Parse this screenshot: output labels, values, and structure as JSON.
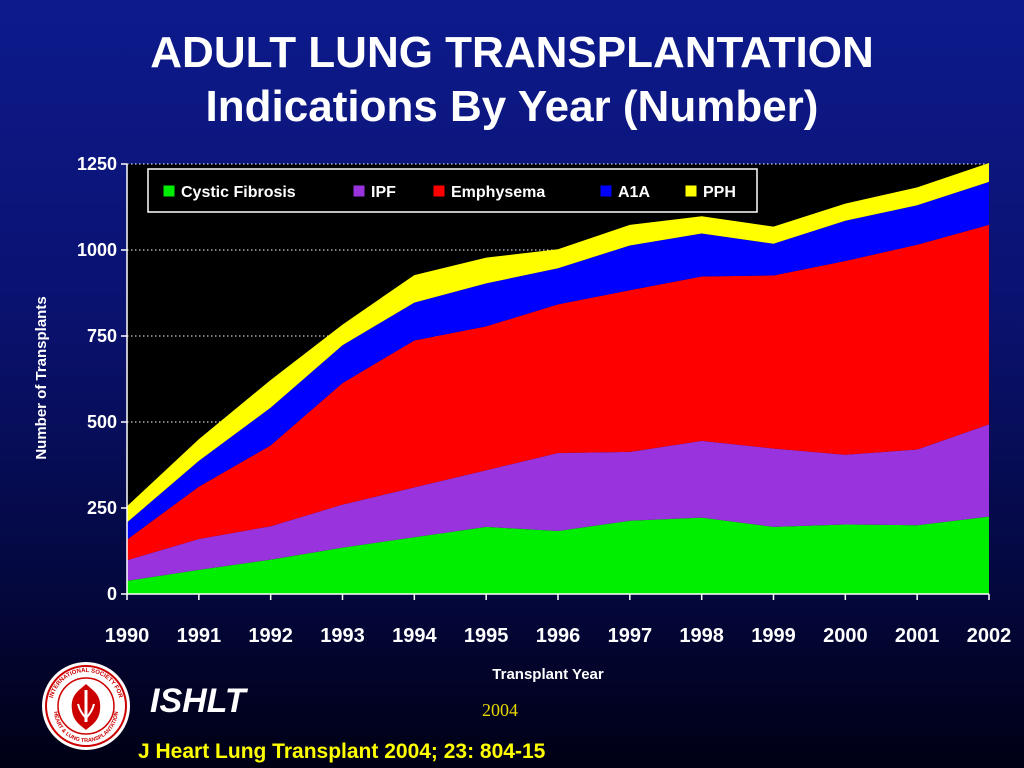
{
  "slide": {
    "title_line1": "ADULT LUNG TRANSPLANTATION",
    "title_line2": "Indications By Year (Number)",
    "brand": "ISHLT",
    "year_note": "2004",
    "citation": "J Heart Lung Transplant 2004; 23: 804-15",
    "logo_text_top": "INTERNATIONAL SOCIETY FOR",
    "logo_text_bottom": "HEART & LUNG TRANSPLANTATION"
  },
  "colors": {
    "plot_background": "#000000",
    "axis_text": "#ffffff",
    "gridline": "#ffffff"
  },
  "chart_data": {
    "type": "area",
    "stacked": true,
    "title": "",
    "xlabel": "Transplant Year",
    "ylabel": "Number of Transplants",
    "x": [
      1990,
      1991,
      1992,
      1993,
      1994,
      1995,
      1996,
      1997,
      1998,
      1999,
      2000,
      2001,
      2002
    ],
    "xtick_labels": [
      "1990",
      "1991",
      "1992",
      "1993",
      "1994",
      "1995",
      "1996",
      "1997",
      "1998",
      "1999",
      "2000",
      "2001",
      "2002"
    ],
    "ylim": [
      0,
      1250
    ],
    "yticks": [
      0,
      250,
      500,
      750,
      1000,
      1250
    ],
    "ytick_labels": [
      "0",
      "250",
      "500",
      "750",
      "1000",
      "1250"
    ],
    "grid": "horizontal dotted",
    "legend_position": "top-left inside plot",
    "series": [
      {
        "name": "Cystic Fibrosis",
        "color": "#00ee00",
        "values": [
          38,
          70,
          100,
          135,
          165,
          195,
          183,
          213,
          222,
          195,
          202,
          200,
          225
        ]
      },
      {
        "name": "IPF",
        "color": "#9933dd",
        "values": [
          60,
          90,
          97,
          125,
          145,
          165,
          227,
          200,
          223,
          228,
          203,
          220,
          268
        ]
      },
      {
        "name": "Emphysema",
        "color": "#ff0000",
        "values": [
          60,
          152,
          235,
          353,
          427,
          418,
          432,
          470,
          478,
          503,
          563,
          595,
          580
        ]
      },
      {
        "name": "A1A",
        "color": "#0000ff",
        "values": [
          50,
          75,
          110,
          110,
          110,
          125,
          105,
          130,
          125,
          92,
          117,
          115,
          125
        ]
      },
      {
        "name": "PPH",
        "color": "#ffff00",
        "values": [
          47,
          63,
          80,
          60,
          80,
          75,
          55,
          60,
          50,
          50,
          50,
          52,
          55
        ]
      }
    ]
  }
}
